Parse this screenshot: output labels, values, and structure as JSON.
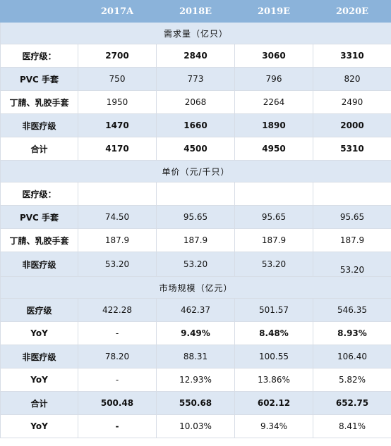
{
  "header": [
    "",
    "2017A",
    "2018E",
    "2019E",
    "2020E"
  ],
  "sections": [
    {
      "title": "需求量（亿只）",
      "rows": [
        {
          "label": "医疗级：",
          "values": [
            "2700",
            "2840",
            "3060",
            "3310"
          ],
          "bold": [
            true,
            true,
            true,
            true
          ],
          "alt": false
        },
        {
          "label": "PVC 手套",
          "values": [
            "750",
            "773",
            "796",
            "820"
          ],
          "bold": [
            false,
            false,
            false,
            false
          ],
          "alt": true
        },
        {
          "label": "丁腈、乳胶手套",
          "values": [
            "1950",
            "2068",
            "2264",
            "2490"
          ],
          "bold": [
            false,
            false,
            false,
            false
          ],
          "alt": false
        },
        {
          "label": "非医疗级",
          "values": [
            "1470",
            "1660",
            "1890",
            "2000"
          ],
          "bold": [
            true,
            true,
            true,
            true
          ],
          "alt": true
        },
        {
          "label": "合计",
          "values": [
            "4170",
            "4500",
            "4950",
            "5310"
          ],
          "bold": [
            true,
            true,
            true,
            true
          ],
          "alt": false
        }
      ]
    },
    {
      "title": "单价（元/千只）",
      "rows": [
        {
          "label": "医疗级：",
          "values": [
            "",
            "",
            "",
            ""
          ],
          "bold": [
            false,
            false,
            false,
            false
          ],
          "alt": false
        },
        {
          "label": "PVC 手套",
          "values": [
            "74.50",
            "95.65",
            "95.65",
            "95.65"
          ],
          "bold": [
            false,
            false,
            false,
            false
          ],
          "alt": true
        },
        {
          "label": "丁腈、乳胶手套",
          "values": [
            "187.9",
            "187.9",
            "187.9",
            "187.9"
          ],
          "bold": [
            false,
            false,
            false,
            false
          ],
          "alt": false
        },
        {
          "label": "非医疗级",
          "values": [
            "53.20",
            "53.20",
            "53.20",
            "53.20"
          ],
          "bold": [
            false,
            false,
            false,
            false
          ],
          "alt": true
        }
      ]
    },
    {
      "title": "市场规模（亿元）",
      "rows": [
        {
          "label": "医疗级",
          "values": [
            "422.28",
            "462.37",
            "501.57",
            "546.35"
          ],
          "bold": [
            false,
            false,
            false,
            false
          ],
          "alt": true
        },
        {
          "label": "YoY",
          "values": [
            "-",
            "9.49%",
            "8.48%",
            "8.93%"
          ],
          "bold": [
            false,
            true,
            true,
            true
          ],
          "alt": false
        },
        {
          "label": "非医疗级",
          "values": [
            "78.20",
            "88.31",
            "100.55",
            "106.40"
          ],
          "bold": [
            false,
            false,
            false,
            false
          ],
          "alt": true
        },
        {
          "label": "YoY",
          "values": [
            "-",
            "12.93%",
            "13.86%",
            "5.82%"
          ],
          "bold": [
            false,
            false,
            false,
            false
          ],
          "alt": false
        },
        {
          "label": "合计",
          "values": [
            "500.48",
            "550.68",
            "602.12",
            "652.75"
          ],
          "bold": [
            true,
            true,
            true,
            true
          ],
          "alt": true
        },
        {
          "label": "YoY",
          "values": [
            "-",
            "10.03%",
            "9.34%",
            "8.41%"
          ],
          "bold": [
            true,
            false,
            false,
            false
          ],
          "alt": false
        }
      ]
    }
  ]
}
